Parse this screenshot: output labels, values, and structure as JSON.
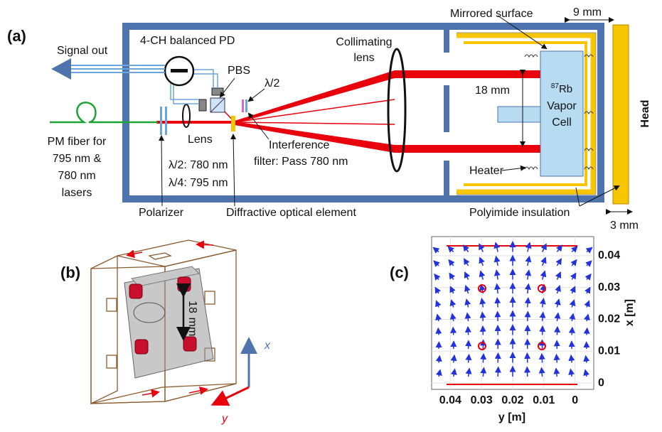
{
  "panel_a": {
    "label": "(a)",
    "signal_out": "Signal out",
    "pd": "4-CH balanced PD",
    "pbs": "PBS",
    "half_wave": "λ/2",
    "collimating_lens": [
      "Collimating",
      "lens"
    ],
    "mirrored_surface": "Mirrored surface",
    "head_gap": "9 mm",
    "beam_spacing": "18 mm",
    "cell": {
      "isotope": "87",
      "element": "Rb",
      "lines": [
        "Vapor",
        "Cell"
      ]
    },
    "head": "Head",
    "fiber": [
      "PM fiber for",
      "795 nm &",
      "780 nm",
      "lasers"
    ],
    "lens": "Lens",
    "waveplates": [
      "λ/2: 780 nm",
      "λ/4: 795 nm"
    ],
    "filter": [
      "Interference",
      "filter: Pass 780 nm"
    ],
    "heater": "Heater",
    "polarizer": "Polarizer",
    "doe": "Diffractive optical element",
    "insulation": "Polyimide insulation",
    "insulation_thickness": "3 mm"
  },
  "panel_b": {
    "label": "(b)",
    "dimension": [
      "18",
      "mm"
    ],
    "axis_x": "x",
    "axis_y": "y"
  },
  "panel_c": {
    "label": "(c)",
    "x_axis_label": "y [m]",
    "y_axis_label": "x [m]",
    "xlim": [
      0.046,
      -0.006
    ],
    "xticks": [
      0.04,
      0.03,
      0.02,
      0.01,
      0
    ],
    "ylim": [
      -0.002,
      0.046
    ],
    "yticks": [
      0,
      0.01,
      0.02,
      0.03,
      0.04
    ],
    "grid": true
  }
}
